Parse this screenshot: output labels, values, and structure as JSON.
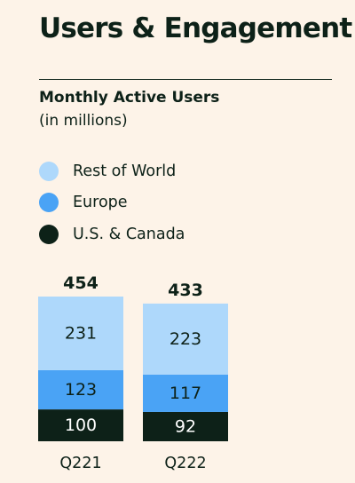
{
  "header": {
    "title": "Users & Engagement"
  },
  "chart_data": {
    "type": "bar",
    "stacked": true,
    "title": "Monthly Active Users",
    "subtitle": "(in millions)",
    "categories": [
      "Q221",
      "Q222"
    ],
    "totals": [
      454,
      433
    ],
    "series": [
      {
        "name": "U.S. & Canada",
        "values": [
          100,
          92
        ],
        "color": "#0d2118",
        "label_color": "#ffffff"
      },
      {
        "name": "Europe",
        "values": [
          123,
          117
        ],
        "color": "#4aa3f5",
        "label_color": "#0d2118"
      },
      {
        "name": "Rest of World",
        "values": [
          231,
          223
        ],
        "color": "#aed8fb",
        "label_color": "#0d2118"
      }
    ],
    "legend": [
      "Rest of World",
      "Europe",
      "U.S. & Canada"
    ],
    "legend_placement": "top-left",
    "grid": false,
    "axes_visible": false
  }
}
